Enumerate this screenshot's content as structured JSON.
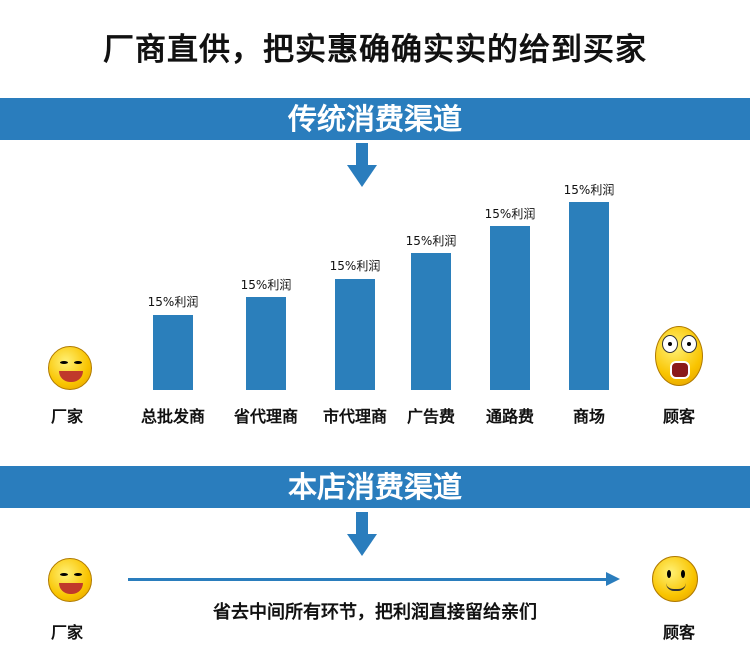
{
  "title": "厂商直供，把实惠确确实实的给到买家",
  "traditional": {
    "banner": "传统消费渠道",
    "start_label": "厂家",
    "end_label": "顾客",
    "stages": [
      {
        "label": "总批发商",
        "profit": "15%利润"
      },
      {
        "label": "省代理商",
        "profit": "15%利润"
      },
      {
        "label": "市代理商",
        "profit": "15%利润"
      },
      {
        "label": "广告费",
        "profit": "15%利润"
      },
      {
        "label": "通路费",
        "profit": "15%利润"
      },
      {
        "label": "商场",
        "profit": "15%利润"
      }
    ]
  },
  "store": {
    "banner": "本店消费渠道",
    "start_label": "厂家",
    "end_label": "顾客",
    "note": "省去中间所有环节，把利润直接留给亲们"
  },
  "colors": {
    "accent": "#2a7dbd",
    "emoji": "#f9c400"
  }
}
